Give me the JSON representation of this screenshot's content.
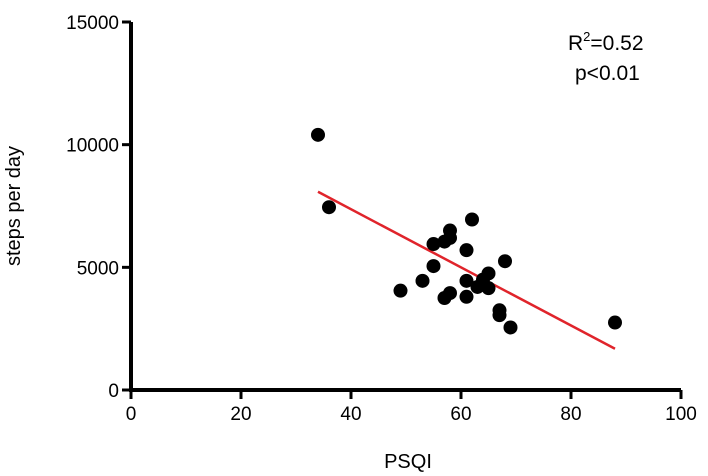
{
  "chart_data": {
    "type": "scatter",
    "xlabel": "PSQI",
    "ylabel": "steps per day",
    "xlim": [
      0,
      100
    ],
    "ylim": [
      0,
      15000
    ],
    "x_ticks": [
      "0",
      "20",
      "40",
      "60",
      "80",
      "100"
    ],
    "y_ticks": [
      "0",
      "5000",
      "10000",
      "15000"
    ],
    "grid": false,
    "annotation": {
      "r_squared_prefix": "R",
      "r_squared_sup": "2",
      "r_squared_value": "=0.52",
      "p_value": "p<0.01"
    },
    "points": [
      {
        "x": 34,
        "y": 10400
      },
      {
        "x": 36,
        "y": 7450
      },
      {
        "x": 49,
        "y": 4050
      },
      {
        "x": 53,
        "y": 4450
      },
      {
        "x": 55,
        "y": 5950
      },
      {
        "x": 55,
        "y": 5050
      },
      {
        "x": 57,
        "y": 6050
      },
      {
        "x": 57,
        "y": 3750
      },
      {
        "x": 58,
        "y": 6500
      },
      {
        "x": 58,
        "y": 6200
      },
      {
        "x": 58,
        "y": 3950
      },
      {
        "x": 61,
        "y": 5700
      },
      {
        "x": 61,
        "y": 4450
      },
      {
        "x": 61,
        "y": 3800
      },
      {
        "x": 62,
        "y": 6950
      },
      {
        "x": 63,
        "y": 4200
      },
      {
        "x": 64,
        "y": 4500
      },
      {
        "x": 65,
        "y": 4750
      },
      {
        "x": 65,
        "y": 4150
      },
      {
        "x": 67,
        "y": 3250
      },
      {
        "x": 67,
        "y": 3050
      },
      {
        "x": 68,
        "y": 5250
      },
      {
        "x": 69,
        "y": 2550
      },
      {
        "x": 88,
        "y": 2750
      }
    ],
    "fit_line": {
      "x": [
        34,
        88
      ],
      "y": [
        8080,
        1680
      ]
    },
    "colors": {
      "points": "#000000",
      "fit_line": "#e0242b",
      "axis": "#000000"
    }
  }
}
